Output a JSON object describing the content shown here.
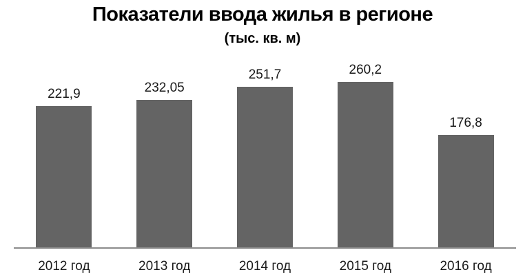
{
  "chart_data": {
    "type": "bar",
    "title": "Показатели ввода жилья в регионе",
    "subtitle": "(тыс. кв. м)",
    "categories": [
      "2012 год",
      "2013 год",
      "2014 год",
      "2015 год",
      "2016 год"
    ],
    "values": [
      221.9,
      232.05,
      251.7,
      260.2,
      176.8
    ],
    "value_labels": [
      "221,9",
      "232,05",
      "251,7",
      "260,2",
      "176,8"
    ],
    "xlabel": "",
    "ylabel": "",
    "ylim": [
      0,
      300
    ],
    "grid": false,
    "legend": false,
    "bar_color": "#646464",
    "axis_line_color": "#8c8c8c",
    "label_color": "#1a1a1a",
    "title_color": "#000000"
  }
}
